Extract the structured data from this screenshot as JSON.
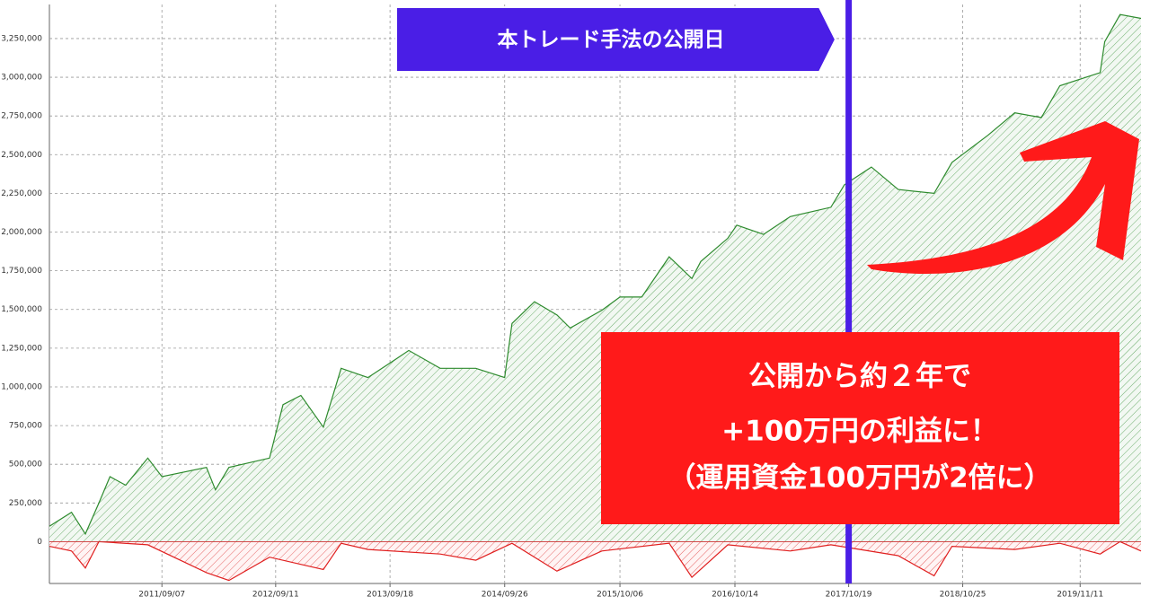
{
  "chart_data": {
    "type": "area",
    "annotations": {
      "banner": "本トレード手法の公開日",
      "callout": [
        "公開から約２年で",
        "+100万円の利益に！",
        "（運用資金100万円が2倍に）"
      ]
    },
    "release_color": "#4a1ee6",
    "xlim": [
      "2010/09/06",
      "2020/05/27"
    ],
    "xticks": [
      "2011/09/07",
      "2012/09/11",
      "2013/09/18",
      "2014/09/26",
      "2015/10/06",
      "2016/10/14",
      "2017/10/19",
      "2018/10/25",
      "2019/11/11"
    ],
    "ylim": [
      -270000,
      3470000
    ],
    "yticks": [
      {
        "value": 0,
        "label": "0"
      },
      {
        "value": 250000,
        "label": "250,000"
      },
      {
        "value": 500000,
        "label": "500,000"
      },
      {
        "value": 750000,
        "label": "750,000"
      },
      {
        "value": 1000000,
        "label": "1,000,000"
      },
      {
        "value": 1250000,
        "label": "1,250,000"
      },
      {
        "value": 1500000,
        "label": "1,500,000"
      },
      {
        "value": 1750000,
        "label": "1,750,000"
      },
      {
        "value": 2000000,
        "label": "2,000,000"
      },
      {
        "value": 2250000,
        "label": "2,250,000"
      },
      {
        "value": 2500000,
        "label": "2,500,000"
      },
      {
        "value": 2750000,
        "label": "2,750,000"
      },
      {
        "value": 3000000,
        "label": "3,000,000"
      },
      {
        "value": 3250000,
        "label": "3,250,000"
      }
    ],
    "grid": true,
    "series": [
      {
        "color": "#2e8b2e",
        "x": [
          "2010/09/06",
          "2010/11/17",
          "2011/01/01",
          "2011/02/14",
          "2011/03/22",
          "2011/05/12",
          "2011/07/23",
          "2011/09/07",
          "2012/01/30",
          "2012/02/28",
          "2012/04/12",
          "2012/08/22",
          "2012/10/05",
          "2012/12/02",
          "2013/02/13",
          "2013/04/12",
          "2013/07/08",
          "2013/10/04",
          "2013/11/18",
          "2014/02/28",
          "2014/06/24",
          "2014/09/26",
          "2014/10/20",
          "2015/01/01",
          "2015/03/15",
          "2015/04/27",
          "2015/08/08",
          "2015/10/06",
          "2015/12/16",
          "2016/03/14",
          "2016/05/27",
          "2016/06/25",
          "2016/09/21",
          "2016/10/20",
          "2017/01/15",
          "2017/04/12",
          "2017/08/22",
          "2017/10/05",
          "2018/01/01",
          "2018/03/29",
          "2018/07/24",
          "2018/09/20",
          "2019/01/15",
          "2019/04/12",
          "2019/07/08",
          "2019/09/06",
          "2020/01/15",
          "2020/01/30",
          "2020/03/20",
          "2020/05/27"
        ],
        "values": [
          100000,
          190000,
          50000,
          250000,
          420000,
          365000,
          540000,
          420000,
          480000,
          335000,
          480000,
          540000,
          885000,
          945000,
          740000,
          1120000,
          1060000,
          1175000,
          1235000,
          1120000,
          1120000,
          1060000,
          1410000,
          1550000,
          1465000,
          1380000,
          1495000,
          1580000,
          1580000,
          1840000,
          1700000,
          1810000,
          1960000,
          2045000,
          1985000,
          2100000,
          2160000,
          2305000,
          2420000,
          2275000,
          2250000,
          2450000,
          2625000,
          2770000,
          2740000,
          2945000,
          3030000,
          3230000,
          3405000,
          3380000
        ]
      },
      {
        "color": "#e02020",
        "x": [
          "2010/09/06",
          "2010/11/17",
          "2011/01/01",
          "2011/02/14",
          "2011/07/23",
          "2012/01/30",
          "2012/04/12",
          "2012/08/22",
          "2013/02/13",
          "2013/04/12",
          "2013/07/08",
          "2014/02/28",
          "2014/06/24",
          "2014/10/20",
          "2015/03/15",
          "2015/08/08",
          "2016/03/14",
          "2016/05/27",
          "2016/09/21",
          "2017/04/12",
          "2017/08/22",
          "2018/03/29",
          "2018/07/24",
          "2018/09/20",
          "2019/04/12",
          "2019/09/06",
          "2020/01/15",
          "2020/03/20",
          "2020/05/27"
        ],
        "values": [
          -30000,
          -60000,
          -170000,
          0,
          -20000,
          -200000,
          -250000,
          -100000,
          -180000,
          -10000,
          -50000,
          -80000,
          -120000,
          -10000,
          -190000,
          -60000,
          -10000,
          -230000,
          -20000,
          -60000,
          -20000,
          -90000,
          -220000,
          -30000,
          -50000,
          -10000,
          -80000,
          0,
          -60000
        ]
      }
    ]
  }
}
